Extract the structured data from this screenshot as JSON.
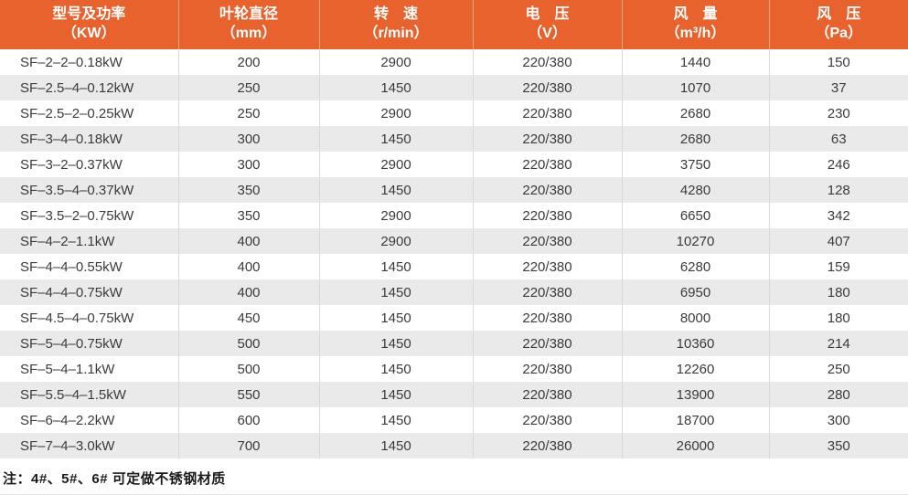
{
  "colors": {
    "header_bg": "#E8622D",
    "row_alt_bg": "#EAEAEA",
    "body_divider": "#D9D9D9",
    "body_text": "#3B3B3B"
  },
  "table": {
    "columns": [
      {
        "key": "model",
        "line1": "型号及功率",
        "line2": "（KW）"
      },
      {
        "key": "diameter",
        "line1": "叶轮直径",
        "line2": "（mm）"
      },
      {
        "key": "speed",
        "line1": "转　速",
        "line2": "（r/min）"
      },
      {
        "key": "voltage",
        "line1": "电　压",
        "line2": "（V）"
      },
      {
        "key": "air_volume",
        "line1": "风　量",
        "line2": "（m³/h）"
      },
      {
        "key": "pressure",
        "line1": "风　压",
        "line2": "（Pa）"
      }
    ],
    "column_keys": [
      "model",
      "diameter",
      "speed",
      "voltage",
      "air_volume",
      "pressure"
    ],
    "rows": [
      [
        "SF–2–2–0.18kW",
        "200",
        "2900",
        "220/380",
        "1440",
        "150"
      ],
      [
        "SF–2.5–4–0.12kW",
        "250",
        "1450",
        "220/380",
        "1070",
        "37"
      ],
      [
        "SF–2.5–2–0.25kW",
        "250",
        "2900",
        "220/380",
        "2680",
        "230"
      ],
      [
        "SF–3–4–0.18kW",
        "300",
        "1450",
        "220/380",
        "2680",
        "63"
      ],
      [
        "SF–3–2–0.37kW",
        "300",
        "2900",
        "220/380",
        "3750",
        "246"
      ],
      [
        "SF–3.5–4–0.37kW",
        "350",
        "1450",
        "220/380",
        "4280",
        "128"
      ],
      [
        "SF–3.5–2–0.75kW",
        "350",
        "2900",
        "220/380",
        "6650",
        "342"
      ],
      [
        "SF–4–2–1.1kW",
        "400",
        "2900",
        "220/380",
        "10270",
        "407"
      ],
      [
        "SF–4–4–0.55kW",
        "400",
        "1450",
        "220/380",
        "6280",
        "159"
      ],
      [
        "SF–4–4–0.75kW",
        "400",
        "1450",
        "220/380",
        "6950",
        "180"
      ],
      [
        "SF–4.5–4–0.75kW",
        "450",
        "1450",
        "220/380",
        "8000",
        "180"
      ],
      [
        "SF–5–4–0.75kW",
        "500",
        "1450",
        "220/380",
        "10360",
        "214"
      ],
      [
        "SF–5–4–1.1kW",
        "500",
        "1450",
        "220/380",
        "12260",
        "250"
      ],
      [
        "SF–5.5–4–1.5kW",
        "550",
        "1450",
        "220/380",
        "13900",
        "280"
      ],
      [
        "SF–6–4–2.2kW",
        "600",
        "1450",
        "220/380",
        "18700",
        "300"
      ],
      [
        "SF–7–4–3.0kW",
        "700",
        "1450",
        "220/380",
        "26000",
        "350"
      ]
    ]
  },
  "note": {
    "text": "注：4#、5#、6# 可定做不锈钢材质"
  }
}
